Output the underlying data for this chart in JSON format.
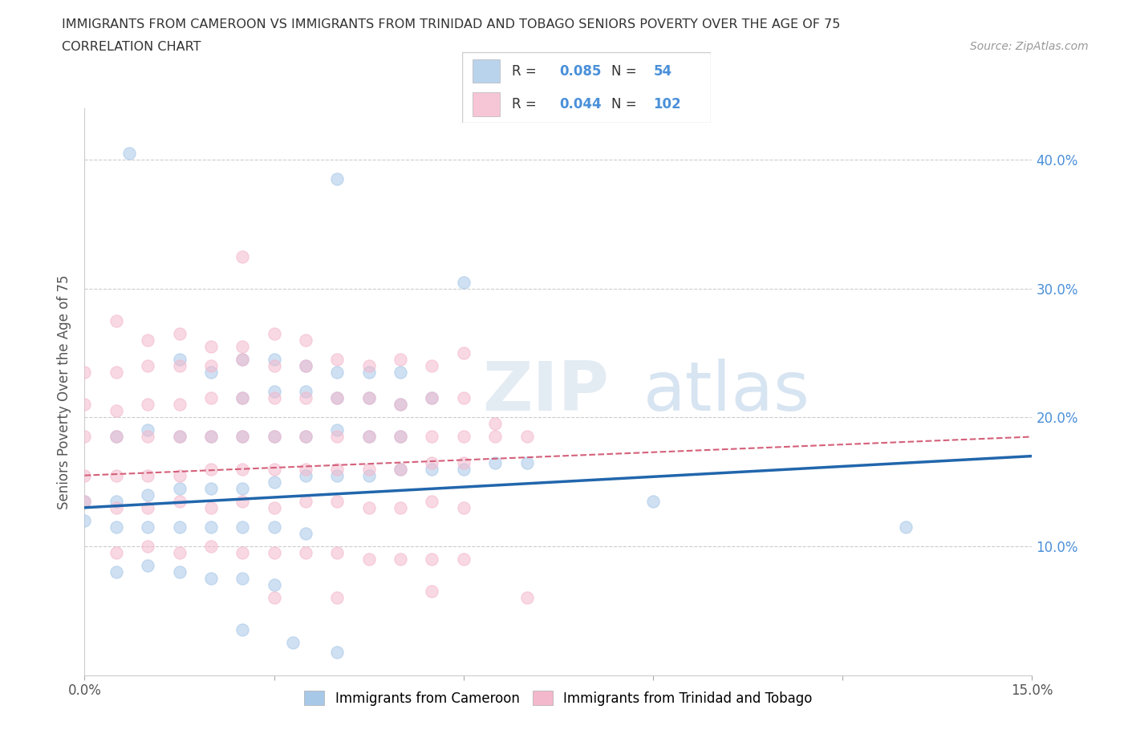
{
  "title_line1": "IMMIGRANTS FROM CAMEROON VS IMMIGRANTS FROM TRINIDAD AND TOBAGO SENIORS POVERTY OVER THE AGE OF 75",
  "title_line2": "CORRELATION CHART",
  "source": "Source: ZipAtlas.com",
  "ylabel": "Seniors Poverty Over the Age of 75",
  "xlim": [
    0.0,
    0.15
  ],
  "ylim": [
    0.0,
    0.44
  ],
  "color_cameroon": "#a8c8e8",
  "color_tt": "#f4b8cc",
  "line_cameroon": "#2166ac",
  "line_tt": "#d4607a",
  "R_cameroon": "0.085",
  "N_cameroon": "54",
  "R_tt": "0.044",
  "N_tt": "102",
  "stat_color": "#4a90d9",
  "watermark": "ZIPatlas",
  "legend_label_cam": "Immigrants from Cameroon",
  "legend_label_tt": "Immigrants from Trinidad and Tobago"
}
